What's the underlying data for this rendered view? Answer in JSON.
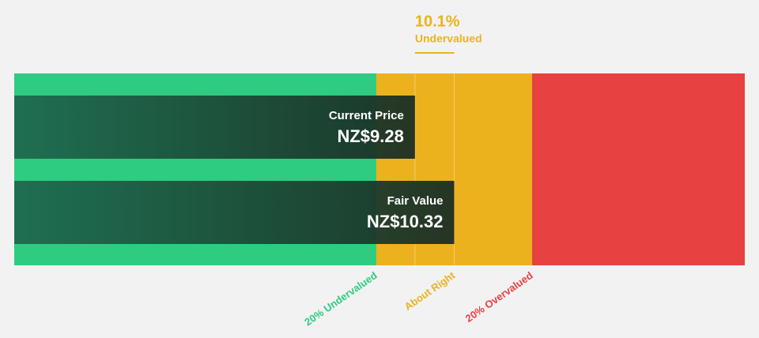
{
  "chart_data": {
    "type": "valuation-bar",
    "categories": [
      "Current Price",
      "Fair Value"
    ],
    "values": [
      9.28,
      10.32
    ],
    "value_labels": [
      "NZ$9.28",
      "NZ$10.32"
    ],
    "xlim": [
      -1.34,
      18.02
    ],
    "zones": {
      "labels": [
        "20% Undervalued",
        "About Right",
        "20% Overvalued"
      ],
      "edges": [
        8.256,
        12.384
      ],
      "colors": [
        "#2ecc80",
        "#ecb21e",
        "#e84141"
      ]
    },
    "annotation": {
      "value": 10.1,
      "value_label": "10.1%",
      "text": "Undervalued",
      "color": "#ecb21e"
    }
  }
}
